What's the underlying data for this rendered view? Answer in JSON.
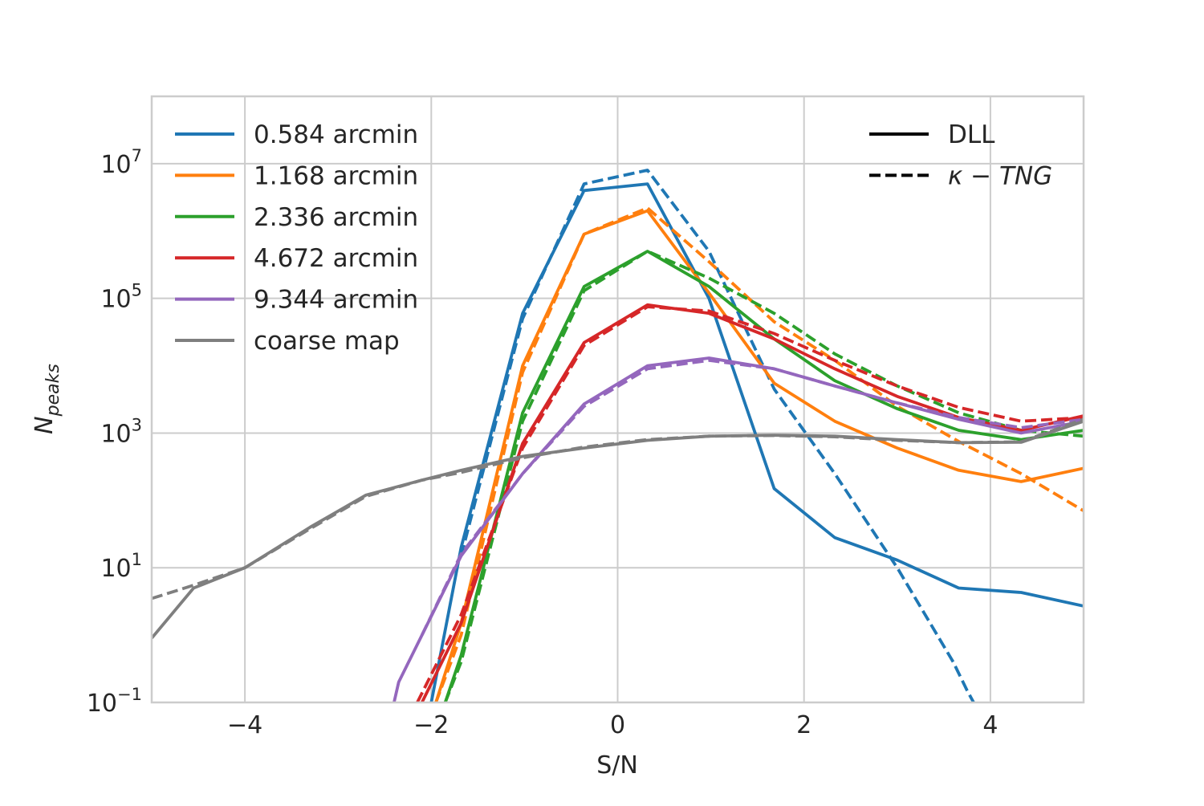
{
  "chart_data": {
    "type": "line",
    "xlabel": "S/N",
    "ylabel_base": "N",
    "ylabel_sub": "peaks",
    "yscale": "log",
    "xlim": [
      -5,
      5
    ],
    "ylim": [
      0.1,
      100000000
    ],
    "grid": true,
    "x_ticks": [
      {
        "value": -4,
        "label": "−4"
      },
      {
        "value": -2,
        "label": "−2"
      },
      {
        "value": 0,
        "label": "0"
      },
      {
        "value": 2,
        "label": "2"
      },
      {
        "value": 4,
        "label": "4"
      }
    ],
    "y_ticks": [
      {
        "value": 0.1,
        "base": "10",
        "exp": "−1"
      },
      {
        "value": 10,
        "base": "10",
        "exp": "1"
      },
      {
        "value": 1000,
        "base": "10",
        "exp": "3"
      },
      {
        "value": 100000,
        "base": "10",
        "exp": "5"
      },
      {
        "value": 10000000,
        "base": "10",
        "exp": "7"
      }
    ],
    "legend_colors": {
      "position": "top-left",
      "entries": [
        {
          "label": "0.584 arcmin",
          "color": "#1f77b4"
        },
        {
          "label": "1.168 arcmin",
          "color": "#ff7f0e"
        },
        {
          "label": "2.336 arcmin",
          "color": "#2ca02c"
        },
        {
          "label": "4.672 arcmin",
          "color": "#d62728"
        },
        {
          "label": "9.344 arcmin",
          "color": "#9467bd"
        },
        {
          "label": "coarse map",
          "color": "#7f7f7f"
        }
      ]
    },
    "legend_styles": {
      "position": "top-right",
      "entries": [
        {
          "label": "DLL",
          "dash": "solid"
        },
        {
          "label": "κ − TNG",
          "dash": "dashed"
        }
      ]
    },
    "series": [
      {
        "name": "0.584 arcmin",
        "style": "solid",
        "color": "#1f77b4",
        "x": [
          -2.0,
          -1.68,
          -1.02,
          -0.36,
          0.32,
          0.98,
          1.68,
          2.33,
          3.0,
          3.66,
          4.33,
          5.0
        ],
        "y": [
          0.1,
          20,
          60000,
          4000000,
          5000000,
          100000,
          150,
          28,
          13,
          5,
          4.3,
          2.7
        ]
      },
      {
        "name": "0.584 arcmin",
        "style": "dashed",
        "color": "#1f77b4",
        "x": [
          -1.68,
          -1.02,
          -0.36,
          0.32,
          0.98,
          1.68,
          2.33,
          3.0,
          3.6,
          3.75,
          3.82
        ],
        "y": [
          15,
          50000,
          5000000,
          8000000,
          500000,
          4500,
          250,
          10,
          0.4,
          0.15,
          0.1
        ]
      },
      {
        "name": "1.168 arcmin",
        "style": "solid",
        "color": "#ff7f0e",
        "x": [
          -1.95,
          -1.68,
          -1.02,
          -0.36,
          0.32,
          0.98,
          1.68,
          2.33,
          3.0,
          3.66,
          4.33,
          5.0
        ],
        "y": [
          0.1,
          1.5,
          10000,
          900000,
          2000000,
          120000,
          5500,
          1500,
          600,
          280,
          190,
          300
        ]
      },
      {
        "name": "1.168 arcmin",
        "style": "dashed",
        "color": "#ff7f0e",
        "x": [
          -1.95,
          -1.68,
          -1.02,
          -0.36,
          0.32,
          0.98,
          1.68,
          2.33,
          3.0,
          3.66,
          4.33,
          5.0
        ],
        "y": [
          0.1,
          1.0,
          8000,
          900000,
          2200000,
          350000,
          45000,
          12000,
          2500,
          750,
          250,
          70
        ]
      },
      {
        "name": "2.336 arcmin",
        "style": "solid",
        "color": "#2ca02c",
        "x": [
          -1.85,
          -1.68,
          -1.02,
          -0.36,
          0.32,
          0.98,
          1.68,
          2.33,
          3.0,
          3.66,
          4.33,
          5.0
        ],
        "y": [
          0.1,
          0.5,
          2000,
          150000,
          500000,
          150000,
          25000,
          6000,
          2300,
          1100,
          800,
          1100
        ]
      },
      {
        "name": "2.336 arcmin",
        "style": "dashed",
        "color": "#2ca02c",
        "x": [
          -1.85,
          -1.68,
          -1.02,
          -0.36,
          0.32,
          0.98,
          1.68,
          2.33,
          3.0,
          3.66,
          4.33,
          5.0
        ],
        "y": [
          0.1,
          0.4,
          1500,
          130000,
          500000,
          200000,
          60000,
          15000,
          5000,
          2000,
          1100,
          900
        ]
      },
      {
        "name": "4.672 arcmin",
        "style": "solid",
        "color": "#d62728",
        "x": [
          -2.1,
          -1.68,
          -1.02,
          -0.36,
          0.32,
          0.98,
          1.68,
          2.33,
          3.0,
          3.66,
          4.33,
          5.0
        ],
        "y": [
          0.1,
          1.5,
          700,
          22000,
          80000,
          60000,
          25000,
          9000,
          3500,
          1700,
          1100,
          1800
        ]
      },
      {
        "name": "4.672 arcmin",
        "style": "dashed",
        "color": "#d62728",
        "x": [
          -2.15,
          -1.68,
          -1.02,
          -0.36,
          0.32,
          0.98,
          1.68,
          2.33,
          3.0,
          3.66,
          4.33,
          5.0
        ],
        "y": [
          0.1,
          2.0,
          600,
          20000,
          75000,
          65000,
          30000,
          12000,
          5000,
          2400,
          1500,
          1700
        ]
      },
      {
        "name": "9.344 arcmin",
        "style": "solid",
        "color": "#9467bd",
        "x": [
          -2.4,
          -2.35,
          -2.1,
          -1.68,
          -1.02,
          -0.36,
          0.32,
          0.98,
          1.68,
          2.33,
          3.0,
          3.66,
          4.33,
          5.0
        ],
        "y": [
          0.1,
          0.2,
          1.0,
          15,
          250,
          2700,
          10000,
          13000,
          9000,
          5000,
          2800,
          1600,
          1000,
          1500
        ]
      },
      {
        "name": "9.344 arcmin",
        "style": "dashed",
        "color": "#9467bd",
        "x": [
          -2.1,
          -1.68,
          -1.02,
          -0.36,
          0.32,
          0.98,
          1.68,
          2.33,
          3.0,
          3.66,
          4.33,
          5.0
        ],
        "y": [
          1.0,
          16,
          250,
          2500,
          9000,
          12000,
          9000,
          5000,
          2800,
          1700,
          1200,
          1600
        ]
      },
      {
        "name": "coarse map",
        "style": "solid",
        "color": "#7f7f7f",
        "x": [
          -5.0,
          -4.55,
          -4.0,
          -3.3,
          -2.7,
          -2.1,
          -1.68,
          -1.02,
          -0.36,
          0.32,
          0.98,
          1.68,
          2.33,
          3.0,
          3.66,
          4.33,
          5.0
        ],
        "y": [
          0.9,
          5,
          10,
          40,
          120,
          200,
          280,
          450,
          600,
          780,
          900,
          930,
          900,
          800,
          720,
          730,
          1500
        ]
      },
      {
        "name": "coarse map",
        "style": "dashed",
        "color": "#7f7f7f",
        "x": [
          -5.0,
          -4.55,
          -4.0,
          -3.3,
          -2.7,
          -2.1,
          -1.68,
          -1.02,
          -0.36,
          0.32,
          0.98,
          1.68,
          2.33,
          3.0,
          3.66,
          4.33,
          5.0
        ],
        "y": [
          3.5,
          5.5,
          10,
          38,
          115,
          200,
          260,
          430,
          620,
          800,
          900,
          920,
          880,
          780,
          720,
          740,
          1600
        ]
      }
    ]
  }
}
